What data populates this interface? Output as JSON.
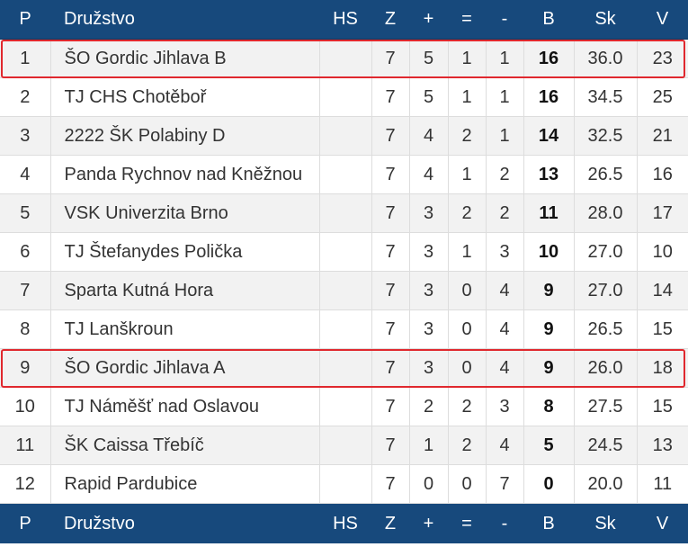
{
  "header": {
    "p": "P",
    "team": "Družstvo",
    "hs": "HS",
    "z": "Z",
    "plus": "+",
    "eq": "=",
    "minus": "-",
    "b": "B",
    "sk": "Sk",
    "v": "V"
  },
  "rows": [
    {
      "p": "1",
      "team": "ŠO Gordic Jihlava B",
      "hs": "",
      "z": "7",
      "plus": "5",
      "eq": "1",
      "minus": "1",
      "b": "16",
      "sk": "36.0",
      "v": "23",
      "highlighted": true
    },
    {
      "p": "2",
      "team": "TJ CHS Chotěboř",
      "hs": "",
      "z": "7",
      "plus": "5",
      "eq": "1",
      "minus": "1",
      "b": "16",
      "sk": "34.5",
      "v": "25",
      "highlighted": false
    },
    {
      "p": "3",
      "team": "2222 ŠK Polabiny D",
      "hs": "",
      "z": "7",
      "plus": "4",
      "eq": "2",
      "minus": "1",
      "b": "14",
      "sk": "32.5",
      "v": "21",
      "highlighted": false
    },
    {
      "p": "4",
      "team": "Panda Rychnov nad Kněžnou",
      "hs": "",
      "z": "7",
      "plus": "4",
      "eq": "1",
      "minus": "2",
      "b": "13",
      "sk": "26.5",
      "v": "16",
      "highlighted": false
    },
    {
      "p": "5",
      "team": "VSK Univerzita Brno",
      "hs": "",
      "z": "7",
      "plus": "3",
      "eq": "2",
      "minus": "2",
      "b": "11",
      "sk": "28.0",
      "v": "17",
      "highlighted": false
    },
    {
      "p": "6",
      "team": "TJ Štefanydes Polička",
      "hs": "",
      "z": "7",
      "plus": "3",
      "eq": "1",
      "minus": "3",
      "b": "10",
      "sk": "27.0",
      "v": "10",
      "highlighted": false
    },
    {
      "p": "7",
      "team": "Sparta Kutná Hora",
      "hs": "",
      "z": "7",
      "plus": "3",
      "eq": "0",
      "minus": "4",
      "b": "9",
      "sk": "27.0",
      "v": "14",
      "highlighted": false
    },
    {
      "p": "8",
      "team": "TJ Lanškroun",
      "hs": "",
      "z": "7",
      "plus": "3",
      "eq": "0",
      "minus": "4",
      "b": "9",
      "sk": "26.5",
      "v": "15",
      "highlighted": false
    },
    {
      "p": "9",
      "team": "ŠO Gordic Jihlava A",
      "hs": "",
      "z": "7",
      "plus": "3",
      "eq": "0",
      "minus": "4",
      "b": "9",
      "sk": "26.0",
      "v": "18",
      "highlighted": true
    },
    {
      "p": "10",
      "team": "TJ Náměšť nad Oslavou",
      "hs": "",
      "z": "7",
      "plus": "2",
      "eq": "2",
      "minus": "3",
      "b": "8",
      "sk": "27.5",
      "v": "15",
      "highlighted": false
    },
    {
      "p": "11",
      "team": "ŠK Caissa Třebíč",
      "hs": "",
      "z": "7",
      "plus": "1",
      "eq": "2",
      "minus": "4",
      "b": "5",
      "sk": "24.5",
      "v": "13",
      "highlighted": false
    },
    {
      "p": "12",
      "team": "Rapid Pardubice",
      "hs": "",
      "z": "7",
      "plus": "0",
      "eq": "0",
      "minus": "7",
      "b": "0",
      "sk": "20.0",
      "v": "11",
      "highlighted": false
    }
  ],
  "colors": {
    "header_bg": "#17497c",
    "highlight_border": "#e0282e",
    "row_alt_bg": "#f2f2f2"
  }
}
